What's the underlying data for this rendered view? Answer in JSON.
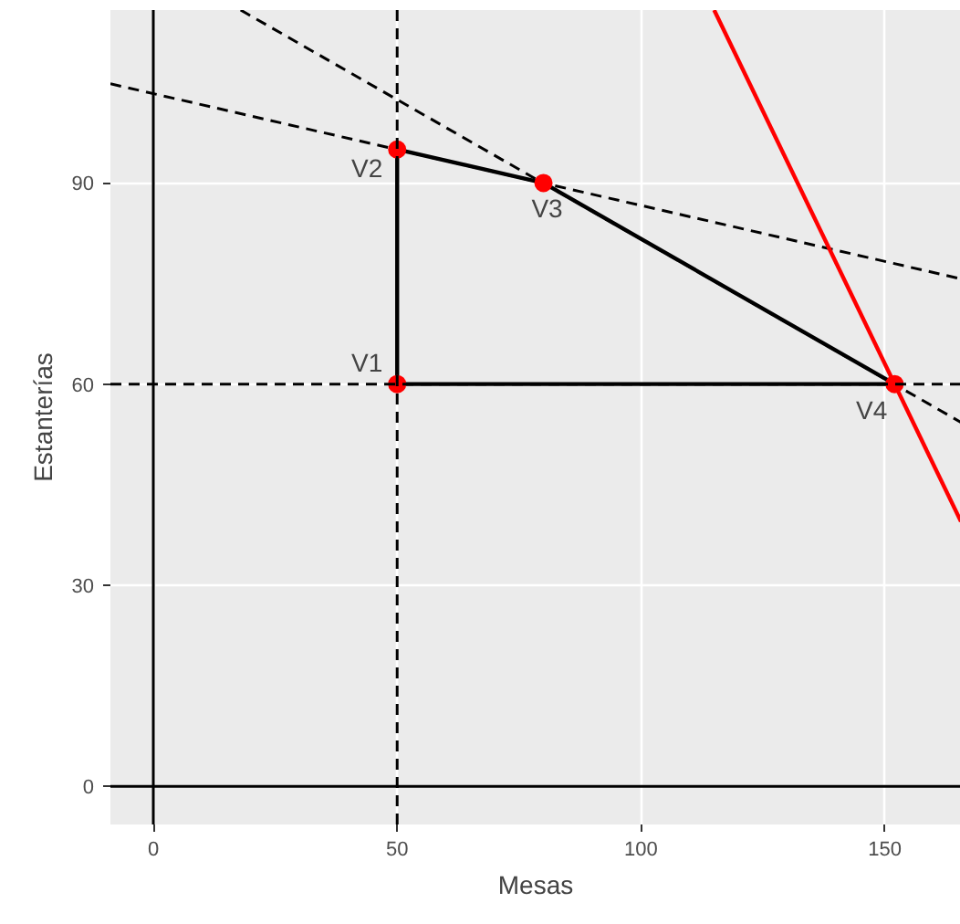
{
  "chart_data": {
    "type": "line",
    "xlabel": "Mesas",
    "ylabel": "Estanterías",
    "xlim": [
      -8.8,
      165.6
    ],
    "ylim": [
      -5.7,
      115.8
    ],
    "xticks": [
      0,
      50,
      100,
      150
    ],
    "yticks": [
      0,
      30,
      60,
      90
    ],
    "grid": true,
    "series": [
      {
        "type": "line",
        "color": "#000000",
        "line_style": "dashed",
        "x": [
          -8.8,
          165.6
        ],
        "values": [
          104.8,
          75.7
        ]
      },
      {
        "type": "line",
        "color": "#000000",
        "line_style": "dashed",
        "x": [
          17.9,
          165.6
        ],
        "values": [
          115.8,
          54.3
        ]
      },
      {
        "type": "line",
        "color": "#ff0000",
        "line_style": "solid",
        "x": [
          115,
          165.6
        ],
        "values": [
          115.8,
          39.5
        ]
      },
      {
        "type": "line",
        "color": "#000000",
        "line_style": "solid",
        "x": [
          50,
          80,
          152
        ],
        "values": [
          95,
          90,
          60
        ]
      },
      {
        "type": "line",
        "color": "#000000",
        "line_style": "solid",
        "x": [
          50,
          152
        ],
        "values": [
          60,
          60
        ]
      },
      {
        "type": "line",
        "color": "#000000",
        "line_style": "solid",
        "x": [
          50,
          50
        ],
        "values": [
          60,
          95
        ]
      },
      {
        "type": "scatter",
        "color": "#ff0000",
        "marker": "circle",
        "x": [
          50,
          50,
          80,
          152
        ],
        "values": [
          60,
          95,
          90,
          60
        ]
      }
    ],
    "ref_lines": [
      {
        "axis": "x",
        "value": 50,
        "color": "#000000",
        "line_style": "dashed"
      },
      {
        "axis": "y",
        "value": 60,
        "color": "#000000",
        "line_style": "dashed"
      },
      {
        "axis": "x",
        "value": 0,
        "color": "#000000",
        "line_style": "solid"
      },
      {
        "axis": "y",
        "value": 0,
        "color": "#000000",
        "line_style": "solid"
      }
    ],
    "annotations": [
      {
        "text": "V1",
        "x": 50,
        "y": 60
      },
      {
        "text": "V2",
        "x": 50,
        "y": 95
      },
      {
        "text": "V3",
        "x": 80,
        "y": 90
      },
      {
        "text": "V4",
        "x": 152,
        "y": 60
      }
    ]
  }
}
